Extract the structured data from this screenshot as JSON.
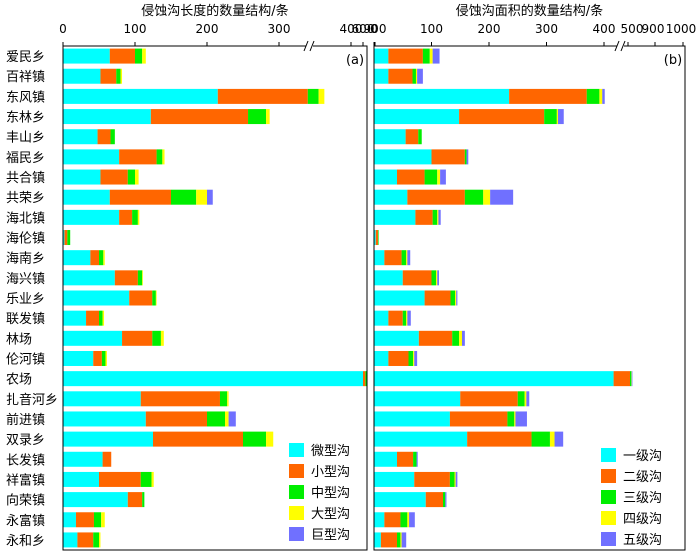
{
  "chart_data": [
    {
      "type": "bar",
      "orientation": "horizontal",
      "stacked": true,
      "title": "侵蚀沟长度的数量结构/条",
      "panel_label": "(a)",
      "axis_ticks": [
        "0",
        "100",
        "200",
        "300",
        "400",
        "600",
        "900"
      ],
      "axis_break": true,
      "xlim": [
        0,
        900
      ],
      "grid": false,
      "legend_position": "bottom-right",
      "legend": [
        "微型沟",
        "小型沟",
        "中型沟",
        "大型沟",
        "巨型沟"
      ],
      "colors": [
        "#00ffff",
        "#ff6600",
        "#00ee00",
        "#ffff00",
        "#7070ff"
      ],
      "categories": [
        "爱民乡",
        "百祥镇",
        "东风镇",
        "东林乡",
        "丰山乡",
        "福民乡",
        "共合镇",
        "共荣乡",
        "海北镇",
        "海伦镇",
        "海南乡",
        "海兴镇",
        "乐业乡",
        "联发镇",
        "林场",
        "伦河镇",
        "农场",
        "扎音河乡",
        "前进镇",
        "双录乡",
        "长发镇",
        "祥富镇",
        "向荣镇",
        "永富镇",
        "永和乡"
      ],
      "series": [
        {
          "name": "微型沟",
          "values": [
            65,
            52,
            215,
            122,
            48,
            78,
            52,
            65,
            78,
            2,
            38,
            72,
            92,
            32,
            82,
            42,
            600,
            108,
            115,
            125,
            55,
            50,
            90,
            18,
            20
          ]
        },
        {
          "name": "小型沟",
          "values": [
            35,
            22,
            125,
            135,
            18,
            52,
            38,
            85,
            18,
            4,
            12,
            32,
            32,
            18,
            42,
            12,
            60,
            110,
            85,
            125,
            12,
            58,
            20,
            25,
            22
          ]
        },
        {
          "name": "中型沟",
          "values": [
            10,
            6,
            15,
            25,
            6,
            8,
            10,
            35,
            8,
            4,
            6,
            6,
            5,
            5,
            12,
            5,
            35,
            10,
            25,
            32,
            0,
            15,
            3,
            10,
            8
          ]
        },
        {
          "name": "大型沟",
          "values": [
            5,
            2,
            8,
            5,
            0,
            3,
            5,
            15,
            2,
            0,
            2,
            1,
            1,
            2,
            4,
            2,
            15,
            2,
            5,
            10,
            0,
            3,
            0,
            5,
            2
          ]
        },
        {
          "name": "巨型沟",
          "values": [
            0,
            0,
            0,
            0,
            0,
            0,
            0,
            8,
            0,
            0,
            0,
            0,
            0,
            0,
            0,
            0,
            0,
            0,
            10,
            0,
            0,
            0,
            0,
            0,
            0
          ]
        }
      ]
    },
    {
      "type": "bar",
      "orientation": "horizontal",
      "stacked": true,
      "title": "侵蚀沟面积的数量结构/条",
      "panel_label": "(b)",
      "axis_ticks": [
        "0",
        "100",
        "200",
        "300",
        "400",
        "500",
        "900",
        "1000"
      ],
      "axis_break": true,
      "xlim": [
        0,
        1000
      ],
      "grid": false,
      "legend_position": "bottom-right",
      "legend": [
        "一级沟",
        "二级沟",
        "三级沟",
        "四级沟",
        "五级沟"
      ],
      "colors": [
        "#00ffff",
        "#ff6600",
        "#00ee00",
        "#ffff00",
        "#7070ff"
      ],
      "categories": [
        "爱民乡",
        "百祥镇",
        "东风镇",
        "东林乡",
        "丰山乡",
        "福民乡",
        "共合镇",
        "共荣乡",
        "海北镇",
        "海伦镇",
        "海南乡",
        "海兴镇",
        "乐业乡",
        "联发镇",
        "林场",
        "伦河镇",
        "农场",
        "扎音河乡",
        "前进镇",
        "双录乡",
        "长发镇",
        "祥富镇",
        "向荣镇",
        "永富镇",
        "永和乡"
      ],
      "series": [
        {
          "name": "一级沟",
          "values": [
            25,
            25,
            235,
            148,
            55,
            100,
            40,
            58,
            72,
            3,
            18,
            50,
            88,
            25,
            78,
            25,
            440,
            150,
            132,
            162,
            40,
            70,
            90,
            18,
            12
          ]
        },
        {
          "name": "二级沟",
          "values": [
            60,
            42,
            135,
            148,
            22,
            58,
            48,
            100,
            30,
            4,
            30,
            50,
            45,
            25,
            58,
            35,
            90,
            100,
            100,
            112,
            28,
            62,
            30,
            28,
            28
          ]
        },
        {
          "name": "三级沟",
          "values": [
            12,
            6,
            22,
            22,
            6,
            3,
            22,
            32,
            8,
            1,
            8,
            8,
            8,
            6,
            12,
            8,
            20,
            12,
            12,
            32,
            6,
            8,
            4,
            12,
            6
          ]
        },
        {
          "name": "四级沟",
          "values": [
            5,
            2,
            5,
            2,
            0,
            0,
            5,
            12,
            2,
            0,
            2,
            2,
            2,
            2,
            5,
            2,
            5,
            3,
            2,
            8,
            0,
            2,
            0,
            3,
            2
          ]
        },
        {
          "name": "五级沟",
          "values": [
            12,
            10,
            6,
            10,
            0,
            3,
            10,
            40,
            4,
            0,
            5,
            3,
            2,
            6,
            5,
            5,
            10,
            5,
            20,
            15,
            2,
            3,
            2,
            10,
            8
          ]
        }
      ]
    }
  ]
}
